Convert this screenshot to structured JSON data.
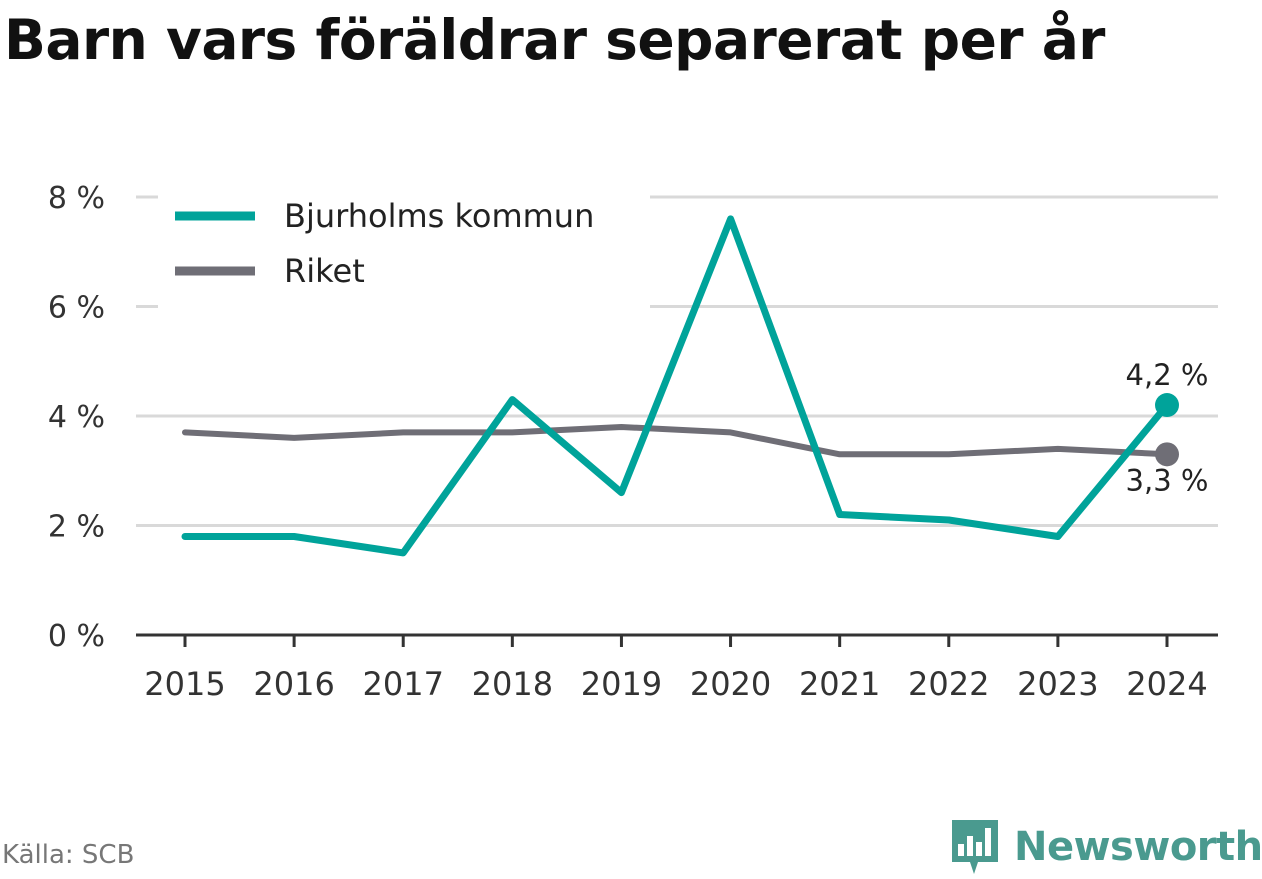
{
  "page": {
    "title": "Barn vars föräldrar separerat per år",
    "source": "Källa: SCB",
    "brand": "Newsworthy"
  },
  "colors": {
    "series_bjurholm": "#00a39a",
    "series_riket": "#6f6e76",
    "grid": "#d9d9d9",
    "axis": "#333333",
    "brand": "#4a9a8f"
  },
  "chart_data": {
    "type": "line",
    "title": "Barn vars föräldrar separerat per år",
    "x": [
      2015,
      2016,
      2017,
      2018,
      2019,
      2020,
      2021,
      2022,
      2023,
      2024
    ],
    "series": [
      {
        "name": "Bjurholms kommun",
        "values": [
          1.8,
          1.8,
          1.5,
          4.3,
          2.6,
          7.6,
          2.2,
          2.1,
          1.8,
          4.2
        ]
      },
      {
        "name": "Riket",
        "values": [
          3.7,
          3.6,
          3.7,
          3.7,
          3.8,
          3.7,
          3.3,
          3.3,
          3.4,
          3.3
        ]
      }
    ],
    "ylim": [
      0,
      8
    ],
    "yticks": [
      0,
      2,
      4,
      6,
      8
    ],
    "ytick_labels": [
      "0 %",
      "2 %",
      "4 %",
      "6 %",
      "8 %"
    ],
    "end_labels": [
      "4,2 %",
      "3,3 %"
    ],
    "grid": true,
    "legend": "top-left"
  }
}
